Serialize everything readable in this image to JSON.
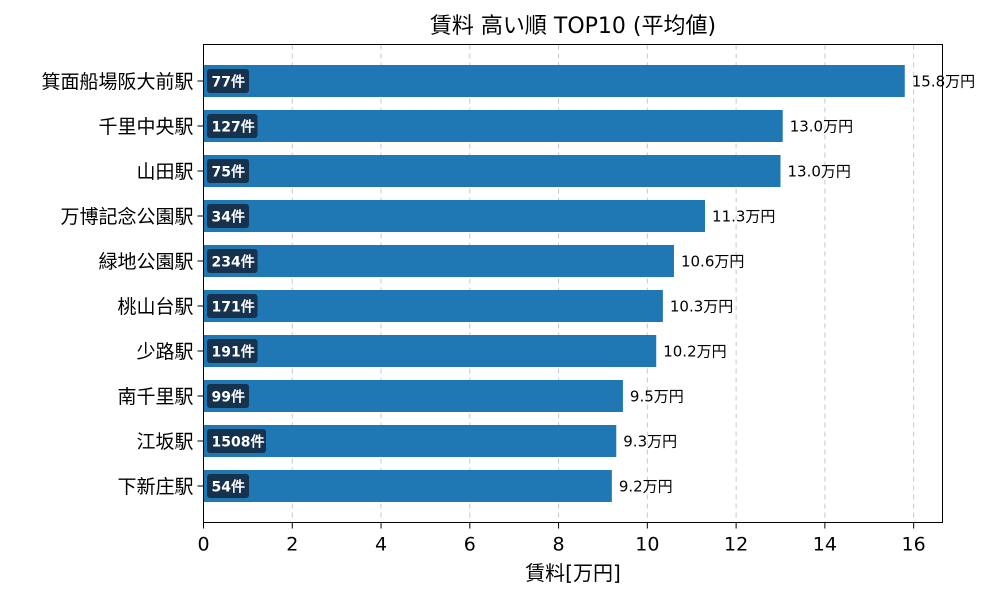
{
  "chart_data": {
    "type": "bar",
    "orientation": "horizontal",
    "title": "賃料 高い順 TOP10 (平均値)",
    "xlabel": "賃料[万円]",
    "ylabel": "",
    "xlim": [
      0,
      16.65
    ],
    "xticks": [
      0,
      2,
      4,
      6,
      8,
      10,
      12,
      14,
      16
    ],
    "grid": {
      "x": true,
      "y": false,
      "style": "dashed"
    },
    "bar_color": "#1f77b4",
    "count_badge_color": "#17324d",
    "categories": [
      "箕面船場阪大前駅",
      "千里中央駅",
      "山田駅",
      "万博記念公園駅",
      "緑地公園駅",
      "桃山台駅",
      "少路駅",
      "南千里駅",
      "江坂駅",
      "下新庄駅"
    ],
    "values": [
      15.8,
      13.05,
      13.0,
      11.3,
      10.6,
      10.35,
      10.2,
      9.45,
      9.3,
      9.2
    ],
    "value_labels": [
      "15.8万円",
      "13.0万円",
      "13.0万円",
      "11.3万円",
      "10.6万円",
      "10.3万円",
      "10.2万円",
      "9.5万円",
      "9.3万円",
      "9.2万円"
    ],
    "count_labels": [
      "77件",
      "127件",
      "75件",
      "34件",
      "234件",
      "171件",
      "191件",
      "99件",
      "1508件",
      "54件"
    ]
  }
}
